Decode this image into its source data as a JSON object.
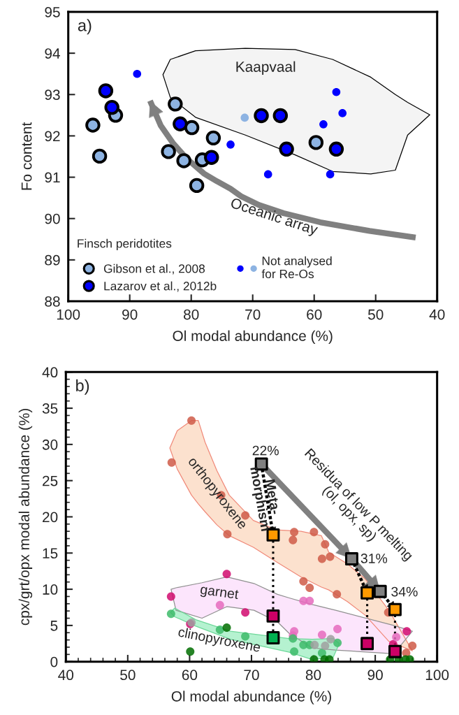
{
  "chart_data": [
    {
      "type": "scatter",
      "xlabel": "Ol modal abundance (%)",
      "ylabel": "Fo content",
      "xlim": [
        100,
        40
      ],
      "xticks": [
        100,
        90,
        80,
        70,
        60,
        50,
        40
      ],
      "ylim": [
        88,
        95
      ],
      "yticks": [
        88,
        89,
        90,
        91,
        92,
        93,
        94,
        95
      ],
      "grid": false,
      "legend": "bottom left",
      "legend_title": "Finsch peridotites",
      "annotations": [
        "a)",
        "Kaapvaal",
        "Oceanic array"
      ],
      "series": [
        {
          "type": "area",
          "color": "#f2f2f2",
          "x": [
            84.6,
            83.4,
            79.3,
            71.2,
            63.1,
            57.0,
            50.8,
            46.8,
            44.8,
            41.2,
            44.8,
            46.8,
            50.8,
            57.0,
            63.1,
            71.2,
            79.3,
            83.4,
            84.6
          ],
          "values": [
            93.48,
            93.85,
            94.06,
            94.12,
            94.09,
            93.85,
            93.42,
            93.0,
            92.81,
            92.51,
            92.02,
            91.17,
            91.08,
            91.14,
            91.54,
            92.02,
            92.45,
            92.93,
            93.48
          ]
        },
        {
          "type": "line",
          "color": "#808080",
          "line_style": "solid",
          "x": [
            43.5,
            51.0,
            59.0,
            65.0,
            69.0,
            71.8,
            73.6,
            75.8,
            77.95,
            80.8,
            83.0,
            84.96,
            86.7
          ],
          "values": [
            89.54,
            89.7,
            89.91,
            90.13,
            90.33,
            90.53,
            90.72,
            90.9,
            91.09,
            91.46,
            91.83,
            92.25,
            92.85
          ]
        },
        {
          "name": "Gibson et al., 2008",
          "marker": "circle",
          "color": "#8db3e2",
          "x": [
            82.6,
            92.3,
            96.0,
            94.9,
            79.9,
            76.4,
            83.7,
            81.2,
            78.2,
            79.1,
            59.7
          ],
          "values": [
            92.77,
            92.5,
            92.26,
            91.51,
            92.2,
            91.95,
            91.62,
            91.4,
            91.42,
            90.8,
            91.84
          ]
        },
        {
          "name": "Lazarov et al., 2012b",
          "marker": "circle",
          "color": "#0000ff",
          "x": [
            93.9,
            92.9,
            81.8,
            76.7,
            68.6,
            65.5,
            64.5,
            56.4
          ],
          "values": [
            93.09,
            92.69,
            92.29,
            91.48,
            92.49,
            92.49,
            91.68,
            91.68
          ]
        },
        {
          "name": "Not analysed\nfor Re-Os",
          "marker": "circle",
          "color": "#8db3e2",
          "x": [
            71.3
          ],
          "values": [
            92.44
          ]
        },
        {
          "marker": "circle",
          "color": "#0000ff",
          "x": [
            88.8,
            73.6,
            67.5,
            57.4,
            58.5,
            55.4,
            56.4
          ],
          "values": [
            93.5,
            91.79,
            91.07,
            91.07,
            92.28,
            92.55,
            93.06
          ]
        }
      ]
    },
    {
      "type": "scatter",
      "xlabel": "Ol modal abundance (%)",
      "ylabel": "cpx/grt/opx modal abundance (%)",
      "xlim": [
        40,
        100
      ],
      "xticks": [
        40,
        {
          "value": 42,
          "label": null
        },
        {
          "value": 44,
          "label": null
        },
        {
          "value": 46,
          "label": null
        },
        {
          "value": 48,
          "label": null
        },
        50,
        {
          "value": 52,
          "label": null
        },
        {
          "value": 54,
          "label": null
        },
        {
          "value": 56,
          "label": null
        },
        {
          "value": 58,
          "label": null
        },
        60,
        {
          "value": 62,
          "label": null
        },
        {
          "value": 64,
          "label": null
        },
        {
          "value": 66,
          "label": null
        },
        {
          "value": 68,
          "label": null
        },
        70,
        {
          "value": 72,
          "label": null
        },
        {
          "value": 74,
          "label": null
        },
        {
          "value": 76,
          "label": null
        },
        {
          "value": 78,
          "label": null
        },
        80,
        {
          "value": 82,
          "label": null
        },
        {
          "value": 84,
          "label": null
        },
        {
          "value": 86,
          "label": null
        },
        {
          "value": 88,
          "label": null
        },
        90,
        {
          "value": 92,
          "label": null
        },
        {
          "value": 94,
          "label": null
        },
        {
          "value": 96,
          "label": null
        },
        {
          "value": 98,
          "label": null
        },
        100
      ],
      "ylim": [
        0,
        40
      ],
      "yticks": [
        0,
        {
          "value": 1,
          "label": null
        },
        {
          "value": 2,
          "label": null
        },
        {
          "value": 3,
          "label": null
        },
        {
          "value": 4,
          "label": null
        },
        5,
        {
          "value": 6,
          "label": null
        },
        {
          "value": 7,
          "label": null
        },
        {
          "value": 8,
          "label": null
        },
        {
          "value": 9,
          "label": null
        },
        10,
        {
          "value": 11,
          "label": null
        },
        {
          "value": 12,
          "label": null
        },
        {
          "value": 13,
          "label": null
        },
        {
          "value": 14,
          "label": null
        },
        15,
        {
          "value": 16,
          "label": null
        },
        {
          "value": 17,
          "label": null
        },
        {
          "value": 18,
          "label": null
        },
        {
          "value": 19,
          "label": null
        },
        20,
        {
          "value": 21,
          "label": null
        },
        {
          "value": 22,
          "label": null
        },
        {
          "value": 23,
          "label": null
        },
        {
          "value": 24,
          "label": null
        },
        25,
        {
          "value": 26,
          "label": null
        },
        {
          "value": 27,
          "label": null
        },
        {
          "value": 28,
          "label": null
        },
        {
          "value": 29,
          "label": null
        },
        30,
        {
          "value": 31,
          "label": null
        },
        {
          "value": 32,
          "label": null
        },
        {
          "value": 33,
          "label": null
        },
        {
          "value": 34,
          "label": null
        },
        35,
        {
          "value": 36,
          "label": null
        },
        {
          "value": 37,
          "label": null
        },
        {
          "value": 38,
          "label": null
        },
        {
          "value": 39,
          "label": null
        },
        40
      ],
      "grid": false,
      "legend": false,
      "annotations": [
        "b)",
        "22%",
        "31%",
        "34%",
        "orthopyroxene",
        "garnet",
        "clinopyroxene",
        "Meta-\nmorphism",
        "Residua of low P melting\n(ol, opx, sp)"
      ],
      "series": [
        {
          "type": "area",
          "color": "#fbdcc5",
          "x": [
            56.8,
            58,
            60.3,
            61.4,
            62.5,
            64.4,
            66.4,
            70.3,
            74,
            78,
            81.3,
            82.5,
            85.5,
            88.4,
            92.2,
            96,
            92.2,
            88.4,
            85.5,
            82.5,
            81.3,
            78,
            74,
            70.3,
            66.4,
            64.4,
            62.5,
            61.4,
            60.3,
            58,
            56.8
          ],
          "values": [
            29.5,
            31.9,
            33.3,
            33.3,
            30.3,
            26.4,
            23.0,
            19.5,
            18.2,
            18.0,
            17.4,
            15.1,
            13.5,
            11.4,
            7.1,
            1.5,
            2.8,
            6.4,
            8.3,
            9.9,
            10.3,
            11.7,
            13.8,
            15.8,
            17.4,
            18.9,
            20.7,
            21.8,
            23.0,
            26.6,
            29.5
          ]
        },
        {
          "type": "area",
          "color": "#fbe0fb",
          "x": [
            57.0,
            57.8,
            62,
            66,
            70.4,
            74.2,
            76.1,
            79.8,
            83.6,
            93.0,
            96.0,
            93.0,
            83.6,
            79.8,
            76.1,
            74.2,
            70.4,
            66,
            62,
            57.8,
            57.0
          ],
          "values": [
            10.0,
            10.2,
            10.9,
            11.7,
            10.8,
            9.3,
            8.8,
            7.9,
            7.1,
            5.0,
            4.2,
            1.1,
            1.6,
            1.9,
            3.9,
            5.5,
            7.1,
            7.6,
            6.0,
            7.1,
            10.0
          ]
        },
        {
          "type": "area",
          "color": "#a8f0c8",
          "x": [
            56.9,
            57.6,
            61,
            66.6,
            76.1,
            79.8,
            83.2,
            84.2,
            83.2,
            79.8,
            76.1,
            66.6,
            61,
            57.6,
            56.9
          ],
          "values": [
            6.8,
            7.4,
            5.8,
            4.2,
            3.2,
            3.1,
            3.2,
            2.5,
            0.6,
            0.3,
            1.3,
            3.1,
            4.9,
            6.2,
            6.8
          ]
        },
        {
          "marker": "circle",
          "color": "#cf5a48",
          "x": [
            60.3,
            57.1,
            65.1,
            69.0,
            66.1,
            76.9,
            80.1,
            76.7,
            81.9,
            81.4,
            82.7,
            78.4,
            79.4,
            83.8,
            92.1,
            96.0,
            95.0
          ],
          "values": [
            33.3,
            27.5,
            23.0,
            20.2,
            17.6,
            17.9,
            17.9,
            16.8,
            16.2,
            14.2,
            14.5,
            11.1,
            10.2,
            9.3,
            6.8,
            2.2,
            1.2
          ]
        },
        {
          "marker": "circle",
          "color": "#d10a6f",
          "x": [
            66.0,
            57.0,
            69.0,
            60.1,
            95.1,
            92.9
          ],
          "values": [
            12.1,
            9.0,
            6.8,
            5.2,
            4.2,
            2.4
          ]
        },
        {
          "marker": "circle",
          "color": "#e56bbd",
          "x": [
            64.9,
            78.4,
            79.4,
            76.9,
            76.7,
            81.4,
            83.9,
            93.4
          ],
          "values": [
            7.8,
            8.4,
            8.4,
            4.2,
            3.6,
            3.7,
            4.5,
            3.4
          ]
        },
        {
          "marker": "circle",
          "color": "#3dbb6a",
          "x": [
            57.0,
            64.9,
            69.0,
            76.7,
            78.4,
            79.4,
            83.9,
            76.9,
            81.4
          ],
          "values": [
            6.6,
            4.4,
            3.5,
            3.2,
            2.3,
            2.3,
            2.6,
            1.4,
            1.2
          ]
        },
        {
          "marker": "circle",
          "color": "#006d00",
          "x": [
            66.0,
            60.1,
            80.1,
            81.8,
            82.6,
            92.4,
            93.8,
            94.9,
            95.6
          ],
          "values": [
            4.7,
            1.4,
            0.3,
            0.3,
            0.3,
            0.3,
            0.3,
            0.3,
            0.3
          ]
        },
        {
          "marker": "circle",
          "color": "#a0a0a0",
          "x": [
            60.3,
            80.2,
            81.9,
            82.8
          ],
          "values": [
            5.4,
            2.3,
            2.2,
            3.1
          ]
        },
        {
          "type": "line",
          "color": "#808080",
          "line_style": "solid",
          "x": [
            71.6,
            86.2,
            90.8
          ],
          "values": [
            27.3,
            14.2,
            9.7
          ]
        },
        {
          "type": "line",
          "color": "#000000",
          "line_style": "dashed",
          "x": [
            71.6,
            73.5
          ],
          "values": [
            27.3,
            17.5
          ]
        },
        {
          "type": "line",
          "color": "#000000",
          "line_style": "dashed",
          "x": [
            86.2,
            88.7
          ],
          "values": [
            14.2,
            9.5
          ]
        },
        {
          "type": "line",
          "color": "#000000",
          "line_style": "dashed",
          "x": [
            90.8,
            93.2
          ],
          "values": [
            9.7,
            7.2
          ]
        },
        {
          "type": "line",
          "color": "#000000",
          "line_style": "dotted",
          "x": [
            73.5,
            73.5,
            73.5
          ],
          "values": [
            17.5,
            6.3,
            3.3
          ]
        },
        {
          "type": "line",
          "color": "#000000",
          "line_style": "dotted",
          "x": [
            88.7,
            88.7
          ],
          "values": [
            9.5,
            2.5
          ]
        },
        {
          "type": "line",
          "color": "#000000",
          "line_style": "dotted",
          "x": [
            93.2,
            93.2
          ],
          "values": [
            7.2,
            1.4
          ]
        },
        {
          "marker": "square",
          "color": "#808080",
          "x": [
            71.6,
            86.2,
            90.8
          ],
          "values": [
            27.3,
            14.2,
            9.7
          ]
        },
        {
          "marker": "square",
          "color": "#ff9900",
          "x": [
            73.5,
            88.7,
            93.2
          ],
          "values": [
            17.5,
            9.5,
            7.2
          ]
        },
        {
          "marker": "square",
          "color": "#cc0066",
          "x": [
            73.5,
            88.7,
            93.2
          ],
          "values": [
            6.3,
            2.5,
            1.4
          ]
        },
        {
          "marker": "square",
          "color": "#00b050",
          "x": [
            73.5
          ],
          "values": [
            3.3
          ]
        }
      ]
    }
  ]
}
